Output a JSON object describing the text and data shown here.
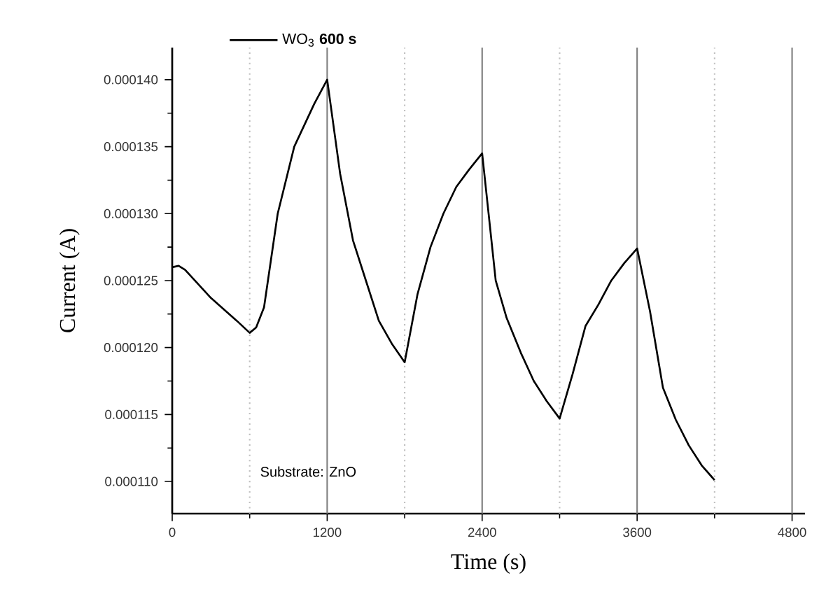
{
  "chart_data": {
    "type": "line",
    "xlabel": "Time (s)",
    "ylabel": "Current (A)",
    "x": [
      0,
      50,
      100,
      300,
      500,
      600,
      650,
      711,
      817,
      945,
      1100,
      1200,
      1300,
      1400,
      1500,
      1600,
      1700,
      1800,
      1900,
      2000,
      2100,
      2200,
      2300,
      2400,
      2450,
      2505,
      2590,
      2700,
      2800,
      2900,
      3000,
      3100,
      3200,
      3300,
      3400,
      3500,
      3600,
      3700,
      3800,
      3900,
      4000,
      4100,
      4200
    ],
    "series": [
      {
        "name": "WO$_{3}$ **600 s**",
        "color": "#000000",
        "values": [
          0.000126,
          0.0001261,
          0.0001258,
          0.0001237,
          0.000122,
          0.0001211,
          0.0001215,
          0.000123,
          0.00013,
          0.000135,
          0.0001382,
          0.00014,
          0.000133,
          0.000128,
          0.000125,
          0.000122,
          0.0001203,
          0.0001189,
          0.000124,
          0.0001275,
          0.00013,
          0.000132,
          0.0001333,
          0.0001345,
          0.00013,
          0.000125,
          0.0001222,
          0.0001196,
          0.0001175,
          0.000116,
          0.0001147,
          0.000118,
          0.0001216,
          0.0001232,
          0.000125,
          0.0001263,
          0.0001274,
          0.0001227,
          0.000117,
          0.0001146,
          0.0001127,
          0.0001112,
          0.0001101
        ]
      }
    ],
    "xlim": [
      0,
      4900
    ],
    "ylim": [
      0.0001076,
      0.0001424
    ],
    "xticks": [
      0,
      1200,
      2400,
      3600,
      4800
    ],
    "yticks": [
      {
        "value": 0.00011,
        "label": "0.000110"
      },
      {
        "value": 0.000115,
        "label": "0.000115"
      },
      {
        "value": 0.00012,
        "label": "0.000120"
      },
      {
        "value": 0.000125,
        "label": "0.000125"
      },
      {
        "value": 0.00013,
        "label": "0.000130"
      },
      {
        "value": 0.000135,
        "label": "0.000135"
      },
      {
        "value": 0.00014,
        "label": "0.000140"
      }
    ],
    "ref_lines": [
      {
        "axis": "x",
        "value": 600,
        "line_style": "dotted",
        "color": "#c0c0c0"
      },
      {
        "axis": "x",
        "value": 1200,
        "line_style": "solid",
        "color": "#808080"
      },
      {
        "axis": "x",
        "value": 1800,
        "line_style": "dotted",
        "color": "#c0c0c0"
      },
      {
        "axis": "x",
        "value": 2400,
        "line_style": "solid",
        "color": "#808080"
      },
      {
        "axis": "x",
        "value": 3000,
        "line_style": "dotted",
        "color": "#c0c0c0"
      },
      {
        "axis": "x",
        "value": 3600,
        "line_style": "solid",
        "color": "#808080"
      },
      {
        "axis": "x",
        "value": 4200,
        "line_style": "dotted",
        "color": "#c0c0c0"
      },
      {
        "axis": "x",
        "value": 4800,
        "line_style": "solid",
        "color": "#808080"
      }
    ],
    "annotations": [
      "Substrate: ZnO"
    ],
    "legend": "top left",
    "grid": false,
    "marker": "none",
    "line_style": "solid"
  }
}
